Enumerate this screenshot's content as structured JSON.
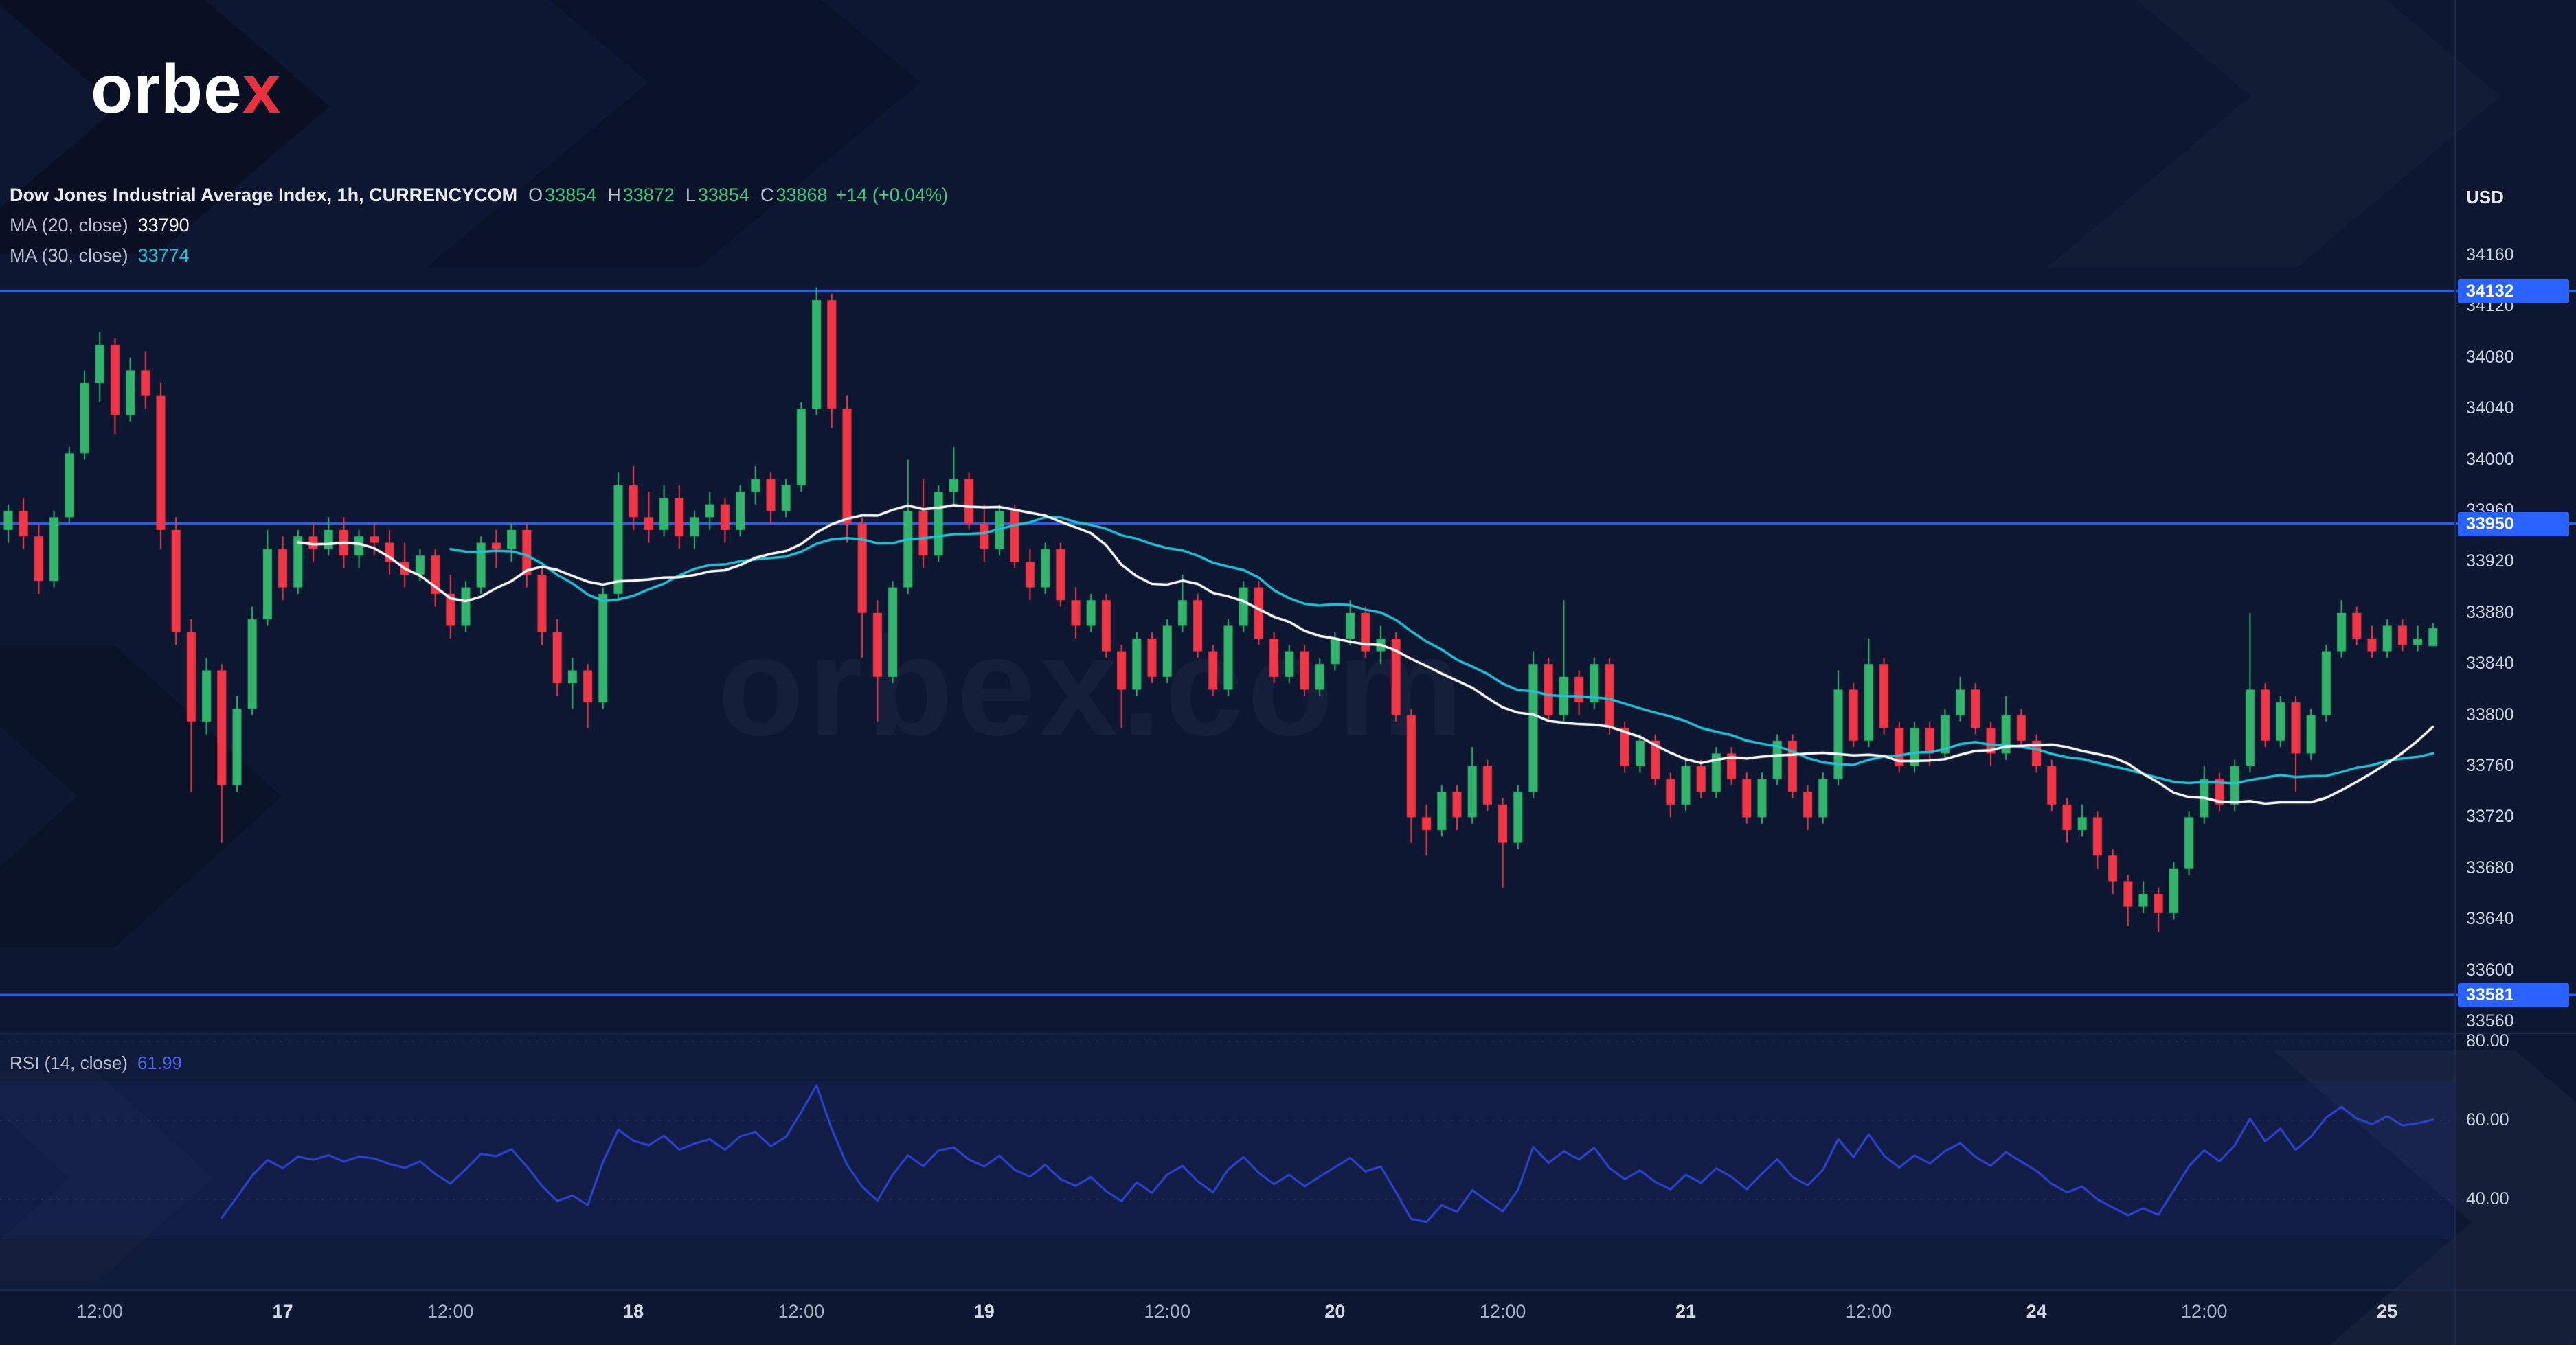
{
  "app": {
    "logo_text": "orbe",
    "logo_accent": "x",
    "watermark": "orbex.com"
  },
  "legend": {
    "title": "Dow Jones Industrial Average Index, 1h, CURRENCYCOM",
    "ohlc": {
      "o_label": "O",
      "o": "33854",
      "h_label": "H",
      "h": "33872",
      "l_label": "L",
      "l": "33854",
      "c_label": "C",
      "c": "33868",
      "change": "+14 (+0.04%)"
    },
    "ma20": {
      "label": "MA (20, close)",
      "value": "33790"
    },
    "ma30": {
      "label": "MA (30, close)",
      "value": "33774"
    },
    "rsi": {
      "label": "RSI (14, close)",
      "value": "61.99"
    }
  },
  "axes": {
    "currency_label": "USD",
    "price_ticks": [
      34160,
      34120,
      34080,
      34040,
      34000,
      33960,
      33920,
      33880,
      33840,
      33800,
      33760,
      33720,
      33680,
      33640,
      33600,
      33560
    ],
    "rsi_ticks": [
      {
        "v": 80,
        "label": "80.00"
      },
      {
        "v": 60,
        "label": "60.00"
      },
      {
        "v": 40,
        "label": "40.00"
      }
    ],
    "time_ticks": [
      {
        "index": 6,
        "label": "12:00",
        "major": false
      },
      {
        "index": 18,
        "label": "17",
        "major": true
      },
      {
        "index": 29,
        "label": "12:00",
        "major": false
      },
      {
        "index": 41,
        "label": "18",
        "major": true
      },
      {
        "index": 52,
        "label": "12:00",
        "major": false
      },
      {
        "index": 64,
        "label": "19",
        "major": true
      },
      {
        "index": 76,
        "label": "12:00",
        "major": false
      },
      {
        "index": 87,
        "label": "20",
        "major": true
      },
      {
        "index": 98,
        "label": "12:00",
        "major": false
      },
      {
        "index": 110,
        "label": "21",
        "major": true
      },
      {
        "index": 122,
        "label": "12:00",
        "major": false
      },
      {
        "index": 133,
        "label": "24",
        "major": true
      },
      {
        "index": 144,
        "label": "12:00",
        "major": false
      },
      {
        "index": 156,
        "label": "25",
        "major": true
      }
    ]
  },
  "chart_data": {
    "type": "candlestick",
    "title": "Dow Jones Industrial Average Index",
    "timeframe": "1h",
    "exchange": "CURRENCYCOM",
    "price_axis_range": [
      33540,
      34180
    ],
    "levels": [
      {
        "price": 34132,
        "label": "34132"
      },
      {
        "price": 33950,
        "label": "33950"
      },
      {
        "price": 33581,
        "label": "33581"
      }
    ],
    "overlays": [
      {
        "name": "MA20",
        "period": 20,
        "last": 33790
      },
      {
        "name": "MA30",
        "period": 30,
        "last": 33774
      }
    ],
    "indicator": {
      "name": "RSI",
      "period": 14,
      "last": 61.99,
      "band": [
        30,
        70
      ],
      "axis_levels": [
        80,
        60,
        40
      ]
    },
    "candles": [
      [
        33945,
        33965,
        33935,
        33960
      ],
      [
        33960,
        33970,
        33930,
        33940
      ],
      [
        33940,
        33950,
        33895,
        33905
      ],
      [
        33905,
        33960,
        33900,
        33955
      ],
      [
        33955,
        34010,
        33950,
        34005
      ],
      [
        34005,
        34070,
        34000,
        34060
      ],
      [
        34060,
        34100,
        34045,
        34090
      ],
      [
        34090,
        34095,
        34020,
        34035
      ],
      [
        34035,
        34080,
        34030,
        34070
      ],
      [
        34070,
        34085,
        34040,
        34050
      ],
      [
        34050,
        34060,
        33930,
        33945
      ],
      [
        33945,
        33955,
        33855,
        33865
      ],
      [
        33865,
        33875,
        33740,
        33795
      ],
      [
        33795,
        33845,
        33785,
        33835
      ],
      [
        33835,
        33840,
        33700,
        33745
      ],
      [
        33745,
        33815,
        33740,
        33805
      ],
      [
        33805,
        33885,
        33800,
        33875
      ],
      [
        33875,
        33945,
        33870,
        33930
      ],
      [
        33930,
        33940,
        33890,
        33900
      ],
      [
        33900,
        33945,
        33895,
        33940
      ],
      [
        33940,
        33950,
        33920,
        33930
      ],
      [
        33930,
        33955,
        33925,
        33945
      ],
      [
        33945,
        33955,
        33915,
        33925
      ],
      [
        33925,
        33945,
        33915,
        33940
      ],
      [
        33940,
        33950,
        33925,
        33935
      ],
      [
        33935,
        33945,
        33910,
        33920
      ],
      [
        33920,
        33935,
        33900,
        33910
      ],
      [
        33910,
        33930,
        33905,
        33925
      ],
      [
        33925,
        33930,
        33885,
        33895
      ],
      [
        33895,
        33910,
        33860,
        33870
      ],
      [
        33870,
        33905,
        33865,
        33900
      ],
      [
        33900,
        33940,
        33895,
        33935
      ],
      [
        33935,
        33945,
        33915,
        33930
      ],
      [
        33930,
        33950,
        33920,
        33945
      ],
      [
        33945,
        33950,
        33900,
        33910
      ],
      [
        33910,
        33915,
        33855,
        33865
      ],
      [
        33865,
        33875,
        33815,
        33825
      ],
      [
        33825,
        33845,
        33805,
        33835
      ],
      [
        33835,
        33840,
        33790,
        33810
      ],
      [
        33810,
        33900,
        33805,
        33895
      ],
      [
        33895,
        33990,
        33890,
        33980
      ],
      [
        33980,
        33995,
        33945,
        33955
      ],
      [
        33955,
        33975,
        33935,
        33945
      ],
      [
        33945,
        33980,
        33940,
        33970
      ],
      [
        33970,
        33980,
        33930,
        33940
      ],
      [
        33940,
        33960,
        33930,
        33955
      ],
      [
        33955,
        33975,
        33945,
        33965
      ],
      [
        33965,
        33970,
        33935,
        33945
      ],
      [
        33945,
        33980,
        33940,
        33975
      ],
      [
        33975,
        33995,
        33965,
        33985
      ],
      [
        33985,
        33990,
        33950,
        33960
      ],
      [
        33960,
        33985,
        33955,
        33980
      ],
      [
        33980,
        34045,
        33975,
        34040
      ],
      [
        34040,
        34135,
        34035,
        34125
      ],
      [
        34125,
        34130,
        34025,
        34040
      ],
      [
        34040,
        34050,
        33935,
        33950
      ],
      [
        33950,
        33955,
        33845,
        33880
      ],
      [
        33880,
        33890,
        33795,
        33830
      ],
      [
        33830,
        33905,
        33825,
        33900
      ],
      [
        33900,
        34000,
        33895,
        33960
      ],
      [
        33960,
        33985,
        33915,
        33925
      ],
      [
        33925,
        33980,
        33920,
        33975
      ],
      [
        33975,
        34010,
        33965,
        33985
      ],
      [
        33985,
        33990,
        33945,
        33950
      ],
      [
        33950,
        33965,
        33920,
        33930
      ],
      [
        33930,
        33965,
        33925,
        33960
      ],
      [
        33960,
        33965,
        33915,
        33920
      ],
      [
        33920,
        33930,
        33890,
        33900
      ],
      [
        33900,
        33935,
        33895,
        33930
      ],
      [
        33930,
        33935,
        33885,
        33890
      ],
      [
        33890,
        33900,
        33860,
        33870
      ],
      [
        33870,
        33895,
        33865,
        33890
      ],
      [
        33890,
        33895,
        33845,
        33850
      ],
      [
        33850,
        33855,
        33790,
        33820
      ],
      [
        33820,
        33865,
        33815,
        33860
      ],
      [
        33860,
        33865,
        33825,
        33830
      ],
      [
        33830,
        33875,
        33825,
        33870
      ],
      [
        33870,
        33910,
        33865,
        33890
      ],
      [
        33890,
        33895,
        33845,
        33850
      ],
      [
        33850,
        33855,
        33815,
        33820
      ],
      [
        33820,
        33875,
        33815,
        33870
      ],
      [
        33870,
        33905,
        33865,
        33900
      ],
      [
        33900,
        33905,
        33855,
        33860
      ],
      [
        33860,
        33865,
        33825,
        33830
      ],
      [
        33830,
        33855,
        33825,
        33850
      ],
      [
        33850,
        33855,
        33815,
        33820
      ],
      [
        33820,
        33845,
        33815,
        33840
      ],
      [
        33840,
        33865,
        33835,
        33860
      ],
      [
        33860,
        33890,
        33855,
        33880
      ],
      [
        33880,
        33885,
        33845,
        33850
      ],
      [
        33850,
        33870,
        33840,
        33860
      ],
      [
        33860,
        33865,
        33795,
        33800
      ],
      [
        33800,
        33805,
        33700,
        33720
      ],
      [
        33720,
        33730,
        33690,
        33710
      ],
      [
        33710,
        33745,
        33705,
        33740
      ],
      [
        33740,
        33745,
        33710,
        33720
      ],
      [
        33720,
        33775,
        33715,
        33760
      ],
      [
        33760,
        33765,
        33725,
        33730
      ],
      [
        33730,
        33735,
        33665,
        33700
      ],
      [
        33700,
        33745,
        33695,
        33740
      ],
      [
        33740,
        33850,
        33735,
        33840
      ],
      [
        33840,
        33845,
        33795,
        33800
      ],
      [
        33800,
        33890,
        33795,
        33830
      ],
      [
        33830,
        33835,
        33800,
        33810
      ],
      [
        33810,
        33845,
        33805,
        33840
      ],
      [
        33840,
        33845,
        33785,
        33790
      ],
      [
        33790,
        33795,
        33755,
        33760
      ],
      [
        33760,
        33785,
        33755,
        33780
      ],
      [
        33780,
        33785,
        33745,
        33750
      ],
      [
        33750,
        33755,
        33720,
        33730
      ],
      [
        33730,
        33765,
        33725,
        33760
      ],
      [
        33760,
        33765,
        33735,
        33740
      ],
      [
        33740,
        33775,
        33735,
        33770
      ],
      [
        33770,
        33775,
        33745,
        33750
      ],
      [
        33750,
        33755,
        33715,
        33720
      ],
      [
        33720,
        33755,
        33715,
        33750
      ],
      [
        33750,
        33785,
        33745,
        33780
      ],
      [
        33780,
        33785,
        33735,
        33740
      ],
      [
        33740,
        33745,
        33710,
        33720
      ],
      [
        33720,
        33755,
        33715,
        33750
      ],
      [
        33750,
        33835,
        33745,
        33820
      ],
      [
        33820,
        33825,
        33775,
        33780
      ],
      [
        33780,
        33860,
        33775,
        33840
      ],
      [
        33840,
        33845,
        33785,
        33790
      ],
      [
        33790,
        33795,
        33755,
        33760
      ],
      [
        33760,
        33795,
        33755,
        33790
      ],
      [
        33790,
        33795,
        33760,
        33770
      ],
      [
        33770,
        33805,
        33765,
        33800
      ],
      [
        33800,
        33830,
        33795,
        33820
      ],
      [
        33820,
        33825,
        33785,
        33790
      ],
      [
        33790,
        33795,
        33760,
        33770
      ],
      [
        33770,
        33815,
        33765,
        33800
      ],
      [
        33800,
        33805,
        33775,
        33780
      ],
      [
        33780,
        33785,
        33755,
        33760
      ],
      [
        33760,
        33765,
        33725,
        33730
      ],
      [
        33730,
        33735,
        33700,
        33710
      ],
      [
        33710,
        33730,
        33705,
        33720
      ],
      [
        33720,
        33725,
        33680,
        33690
      ],
      [
        33690,
        33695,
        33660,
        33670
      ],
      [
        33670,
        33675,
        33635,
        33650
      ],
      [
        33650,
        33670,
        33645,
        33660
      ],
      [
        33660,
        33665,
        33630,
        33645
      ],
      [
        33645,
        33685,
        33640,
        33680
      ],
      [
        33680,
        33725,
        33675,
        33720
      ],
      [
        33720,
        33760,
        33715,
        33750
      ],
      [
        33750,
        33755,
        33725,
        33730
      ],
      [
        33730,
        33765,
        33725,
        33760
      ],
      [
        33760,
        33880,
        33755,
        33820
      ],
      [
        33820,
        33825,
        33775,
        33780
      ],
      [
        33780,
        33815,
        33775,
        33810
      ],
      [
        33810,
        33815,
        33740,
        33770
      ],
      [
        33770,
        33805,
        33765,
        33800
      ],
      [
        33800,
        33855,
        33795,
        33850
      ],
      [
        33850,
        33890,
        33845,
        33880
      ],
      [
        33880,
        33885,
        33855,
        33860
      ],
      [
        33860,
        33870,
        33845,
        33850
      ],
      [
        33850,
        33875,
        33845,
        33870
      ],
      [
        33870,
        33875,
        33850,
        33855
      ],
      [
        33855,
        33870,
        33850,
        33860
      ],
      [
        33854,
        33872,
        33854,
        33868
      ]
    ]
  },
  "colors": {
    "background": "#0d1731",
    "panel_line": "#1e2a4a",
    "candle_up": "#30b56a",
    "candle_down": "#f23645",
    "ma20": "#ffffff",
    "ma30": "#25c1d6",
    "level_blue": "#2962ff",
    "rsi_line": "#2e43d4",
    "accent_red": "#e8313f"
  }
}
